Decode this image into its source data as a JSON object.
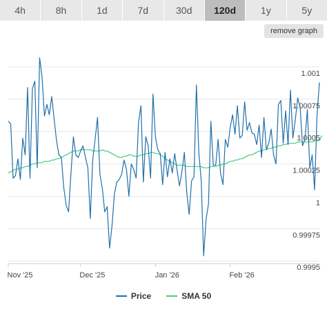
{
  "tabs": [
    {
      "label": "4h",
      "active": false
    },
    {
      "label": "8h",
      "active": false
    },
    {
      "label": "1d",
      "active": false
    },
    {
      "label": "7d",
      "active": false
    },
    {
      "label": "30d",
      "active": false
    },
    {
      "label": "120d",
      "active": true
    },
    {
      "label": "1y",
      "active": false
    },
    {
      "label": "5y",
      "active": false
    }
  ],
  "remove_graph_label": "remove graph",
  "colors": {
    "price": "#1f6fa8",
    "sma": "#3fcf7f",
    "grid": "#e6e6e6",
    "axis": "#cccccc"
  },
  "chart_data": {
    "type": "line",
    "xlabel": "",
    "ylabel": "",
    "ylim": [
      0.99948,
      1.00117
    ],
    "x_ticks": [
      {
        "label": "Nov '25",
        "x": 0
      },
      {
        "label": "Dec '25",
        "x": 30
      },
      {
        "label": "Jan '26",
        "x": 61
      },
      {
        "label": "Feb '26",
        "x": 92
      }
    ],
    "y_ticks": [
      {
        "label": "1.001",
        "value": 1.001
      },
      {
        "label": "1.00075",
        "value": 1.00075
      },
      {
        "label": "1.0005",
        "value": 1.0005
      },
      {
        "label": "1.00025",
        "value": 1.00025
      },
      {
        "label": "1",
        "value": 1.0
      },
      {
        "label": "0.99975",
        "value": 0.99975
      },
      {
        "label": "0.9995",
        "value": 0.9995
      }
    ],
    "legend_position": "bottom",
    "series": [
      {
        "name": "Price",
        "values": [
          1.00058,
          1.00056,
          1.00014,
          1.00016,
          1.00029,
          1.00013,
          1.00045,
          1.00032,
          1.00084,
          1.00014,
          1.00083,
          1.00089,
          1.00022,
          1.00107,
          1.00092,
          1.00062,
          1.00071,
          1.00063,
          1.00077,
          1.0006,
          1.00043,
          1.00032,
          1.0003,
          1.00007,
          0.99993,
          0.99988,
          1.00018,
          1.00046,
          1.00032,
          1.0003,
          1.00035,
          1.00039,
          1.0003,
          1.00022,
          0.99983,
          1.00028,
          1.00044,
          1.00061,
          1.00017,
          1.00006,
          0.99988,
          0.99992,
          0.9996,
          0.99977,
          1.00002,
          1.00011,
          1.00013,
          1.00017,
          1.00028,
          1.00021,
          1.0,
          1.00025,
          1.00021,
          1.00014,
          1.00057,
          1.0007,
          1.00011,
          1.00046,
          1.00039,
          1.00014,
          1.00079,
          1.00046,
          1.00036,
          1.00033,
          1.00009,
          1.00034,
          1.00015,
          1.00029,
          1.00018,
          1.00033,
          1.0002,
          1.00008,
          1.00019,
          1.00034,
          1.00003,
          0.99986,
          1.00012,
          1.00015,
          1.00086,
          1.00034,
          1.00012,
          0.99954,
          0.99982,
          0.99994,
          1.00058,
          1.00024,
          1.00024,
          1.00044,
          1.00018,
          1.00009,
          1.00044,
          1.00038,
          1.00053,
          1.00063,
          1.00048,
          1.0007,
          1.00045,
          1.00047,
          1.00073,
          1.00051,
          1.00057,
          1.00049,
          1.00048,
          1.0004,
          1.00055,
          1.0003,
          1.00061,
          1.00036,
          1.00041,
          1.00052,
          1.00032,
          1.00025,
          1.00071,
          1.00074,
          1.00041,
          1.00066,
          1.0004,
          1.00082,
          1.00045,
          1.00059,
          1.00076,
          1.00069,
          1.00039,
          1.00044,
          1.00067,
          1.00022,
          1.00032,
          1.00005,
          1.00062,
          1.00088
        ]
      },
      {
        "name": "SMA 50",
        "values": [
          1.00018,
          1.00019,
          1.0002,
          1.00021,
          1.00021,
          1.00022,
          1.00022,
          1.00023,
          1.00023,
          1.00024,
          1.00025,
          1.00025,
          1.00026,
          1.00026,
          1.00026,
          1.00027,
          1.00027,
          1.00027,
          1.00028,
          1.00028,
          1.00029,
          1.00029,
          1.0003,
          1.00031,
          1.00032,
          1.00033,
          1.00034,
          1.00035,
          1.00035,
          1.00035,
          1.00036,
          1.00036,
          1.00036,
          1.00036,
          1.00036,
          1.00035,
          1.00035,
          1.00035,
          1.00035,
          1.00036,
          1.00035,
          1.00035,
          1.00034,
          1.00033,
          1.00032,
          1.00031,
          1.0003,
          1.0003,
          1.00031,
          1.00031,
          1.00032,
          1.00032,
          1.00031,
          1.00031,
          1.00031,
          1.00032,
          1.00032,
          1.00033,
          1.00033,
          1.00034,
          1.00034,
          1.00033,
          1.00033,
          1.00032,
          1.00031,
          1.00029,
          1.00028,
          1.00027,
          1.00026,
          1.00025,
          1.00024,
          1.00024,
          1.00024,
          1.00024,
          1.00023,
          1.00023,
          1.00023,
          1.00023,
          1.00023,
          1.00023,
          1.00023,
          1.00022,
          1.00022,
          1.00022,
          1.00023,
          1.00023,
          1.00023,
          1.00024,
          1.00024,
          1.00025,
          1.00025,
          1.00026,
          1.00027,
          1.00027,
          1.00028,
          1.00028,
          1.00029,
          1.00029,
          1.0003,
          1.00031,
          1.00032,
          1.00032,
          1.00033,
          1.00034,
          1.00035,
          1.00035,
          1.00036,
          1.00036,
          1.00037,
          1.00037,
          1.00038,
          1.00038,
          1.00039,
          1.00039,
          1.0004,
          1.0004,
          1.00041,
          1.00041,
          1.00041,
          1.00041,
          1.00042,
          1.00042,
          1.00042,
          1.00042,
          1.00042,
          1.00042,
          1.00042,
          1.00043,
          1.00043,
          1.00043,
          1.00047
        ]
      }
    ]
  }
}
